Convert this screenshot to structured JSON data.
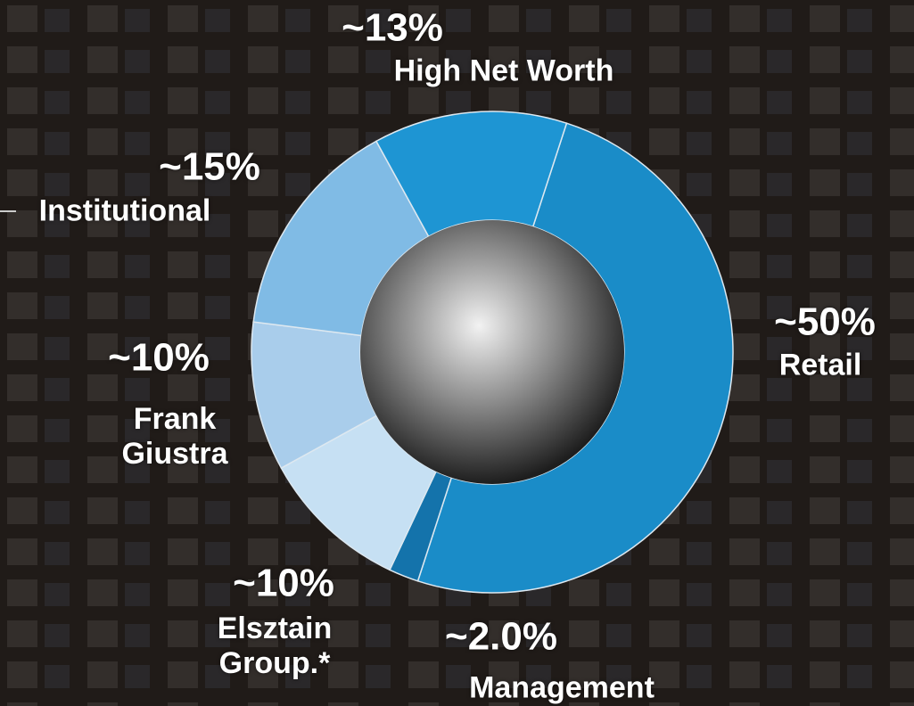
{
  "chart_data": {
    "type": "pie",
    "donut": true,
    "categories": [
      "Retail",
      "Management",
      "Elsztain Group.*",
      "Frank Giustra",
      "Institutional",
      "High Net Worth"
    ],
    "values": [
      50,
      2.0,
      10,
      10,
      15,
      13
    ],
    "value_labels": [
      "~50%",
      "~2.0%",
      "~10%",
      "~10%",
      "~15%",
      "~13%"
    ],
    "colors": [
      "#1a8cc8",
      "#1473ab",
      "#c6e0f3",
      "#a9cdeb",
      "#80bbe5",
      "#1e95d3"
    ]
  }
}
